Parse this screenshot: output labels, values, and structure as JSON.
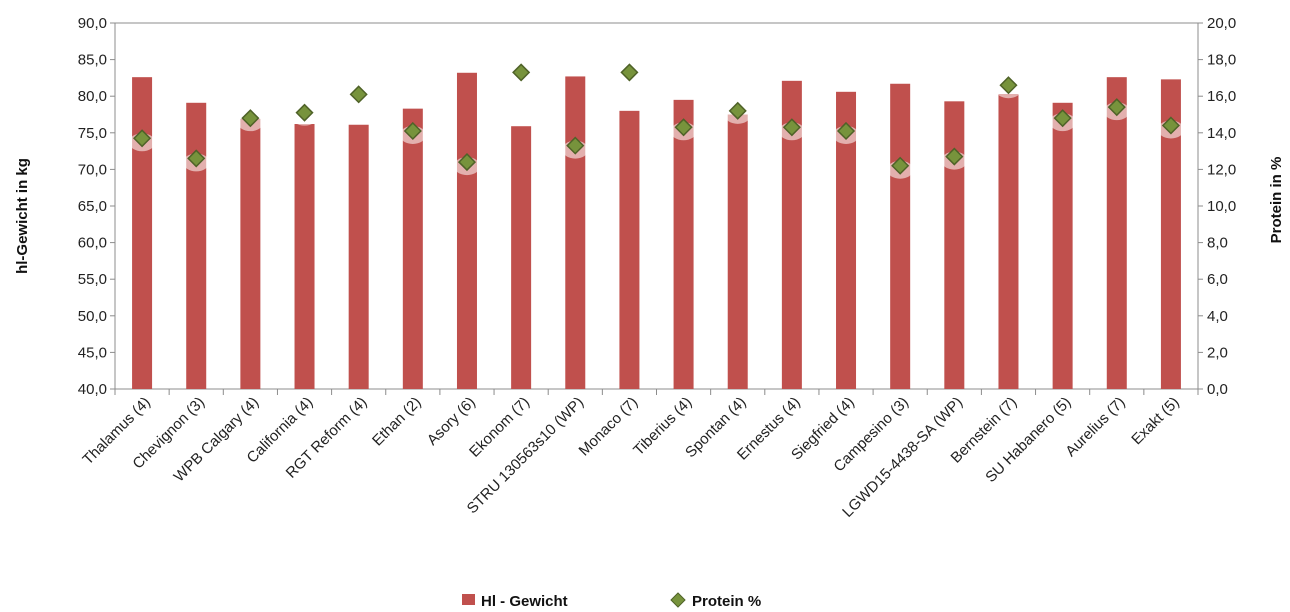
{
  "chart_data": {
    "type": "bar",
    "title": "",
    "categories": [
      "Thalamus (4)",
      "Chevignon (3)",
      "WPB Calgary (4)",
      "California (4)",
      "RGT Reform (4)",
      "Ethan (2)",
      "Asory (6)",
      "Ekonom (7)",
      "STRU 130563s10 (WP)",
      "Monaco (7)",
      "Tiberius (4)",
      "Spontan (4)",
      "Ernestus (4)",
      "Siegfried (4)",
      "Campesino (3)",
      "LGWD15-4438-SA (WP)",
      "Bernstein (7)",
      "SU Habanero (5)",
      "Aurelius (7)",
      "Exakt (5)"
    ],
    "series": [
      {
        "name": "Hl - Gewicht",
        "type": "bar",
        "axis": "left",
        "color": "#c0504d",
        "values": [
          82.6,
          79.1,
          76.9,
          76.2,
          76.1,
          78.3,
          83.2,
          75.9,
          82.7,
          78.0,
          79.5,
          77.5,
          82.1,
          80.6,
          81.7,
          79.3,
          80.3,
          79.1,
          82.6,
          82.3
        ]
      },
      {
        "name": "Protein %",
        "type": "scatter",
        "axis": "right",
        "color": "#77933c",
        "values": [
          13.7,
          12.6,
          14.8,
          15.1,
          16.1,
          14.1,
          12.4,
          17.3,
          13.3,
          17.3,
          14.3,
          15.2,
          14.3,
          14.1,
          12.2,
          12.7,
          16.6,
          14.8,
          15.4,
          14.4
        ]
      }
    ],
    "y_left": {
      "label": "hl-Gewicht in kg",
      "lim": [
        40,
        90
      ],
      "ticks": [
        "40,0",
        "45,0",
        "50,0",
        "55,0",
        "60,0",
        "65,0",
        "70,0",
        "75,0",
        "80,0",
        "85,0",
        "90,0"
      ]
    },
    "y_right": {
      "label": "Protein in %",
      "lim": [
        0,
        20
      ],
      "ticks": [
        "0,0",
        "2,0",
        "4,0",
        "6,0",
        "8,0",
        "10,0",
        "12,0",
        "14,0",
        "16,0",
        "18,0",
        "20,0"
      ]
    },
    "grid": false,
    "legend": "bottom-center"
  }
}
